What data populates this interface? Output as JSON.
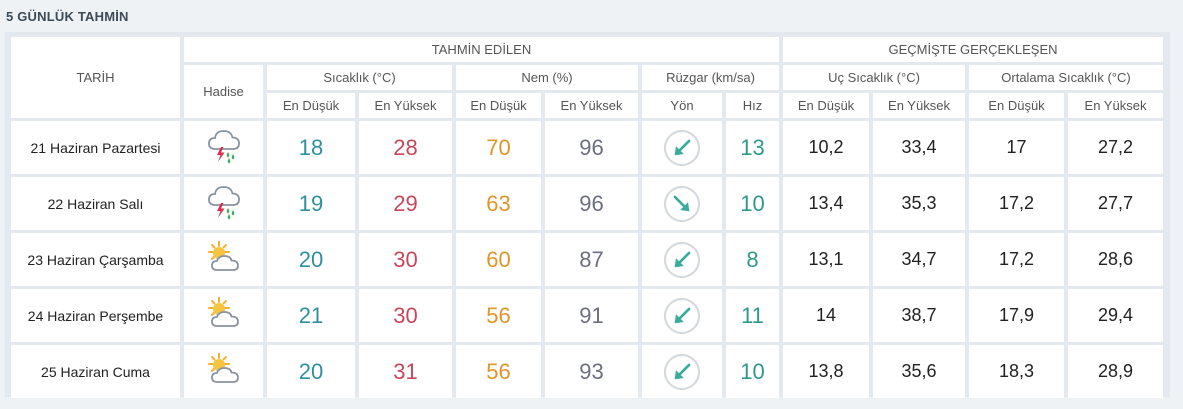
{
  "page": {
    "heading": "5 GÜNLÜK TAHMİN"
  },
  "header": {
    "date_col": "TARİH",
    "forecast_group": "TAHMİN EDİLEN",
    "past_group": "GEÇMİŞTE GERÇEKLEŞEN",
    "event_col": "Hadise",
    "temp_col": "Sıcaklık (°C)",
    "humidity_col": "Nem (%)",
    "wind_col": "Rüzgar (km/sa)",
    "extreme_col": "Uç Sıcaklık (°C)",
    "avg_col": "Ortalama Sıcaklık (°C)",
    "min_label": "En Düşük",
    "max_label": "En Yüksek",
    "dir_label": "Yön",
    "speed_label": "Hız"
  },
  "rows": [
    {
      "date": "21 Haziran Pazartesi",
      "event_icon": "thunderstorm-rain-icon",
      "temp_min": "18",
      "temp_max": "28",
      "hum_min": "70",
      "hum_max": "96",
      "wind_dir": "southwest",
      "wind_angle": 225,
      "wind_speed": "13",
      "ext_min": "10,2",
      "ext_max": "33,4",
      "avg_min": "17",
      "avg_max": "27,2"
    },
    {
      "date": "22 Haziran Salı",
      "event_icon": "thunderstorm-rain-icon",
      "temp_min": "19",
      "temp_max": "29",
      "hum_min": "63",
      "hum_max": "96",
      "wind_dir": "southeast",
      "wind_angle": 135,
      "wind_speed": "10",
      "ext_min": "13,4",
      "ext_max": "35,3",
      "avg_min": "17,2",
      "avg_max": "27,7"
    },
    {
      "date": "23 Haziran Çarşamba",
      "event_icon": "partly-cloudy-icon",
      "temp_min": "20",
      "temp_max": "30",
      "hum_min": "60",
      "hum_max": "87",
      "wind_dir": "southwest",
      "wind_angle": 225,
      "wind_speed": "8",
      "ext_min": "13,1",
      "ext_max": "34,7",
      "avg_min": "17,2",
      "avg_max": "28,6"
    },
    {
      "date": "24 Haziran Perşembe",
      "event_icon": "partly-cloudy-icon",
      "temp_min": "21",
      "temp_max": "30",
      "hum_min": "56",
      "hum_max": "91",
      "wind_dir": "southwest",
      "wind_angle": 225,
      "wind_speed": "11",
      "ext_min": "14",
      "ext_max": "38,7",
      "avg_min": "17,9",
      "avg_max": "29,4"
    },
    {
      "date": "25 Haziran Cuma",
      "event_icon": "partly-cloudy-icon",
      "temp_min": "20",
      "temp_max": "31",
      "hum_min": "56",
      "hum_max": "93",
      "wind_dir": "southwest",
      "wind_angle": 225,
      "wind_speed": "10",
      "ext_min": "13,8",
      "ext_max": "35,6",
      "avg_min": "18,3",
      "avg_max": "28,9"
    }
  ],
  "colors": {
    "min_temp": "#2f8f9c",
    "max_temp": "#c9475a",
    "min_humidity": "#e0952a",
    "max_humidity": "#6d6f80",
    "wind_arrow": "#3aaa9c"
  }
}
